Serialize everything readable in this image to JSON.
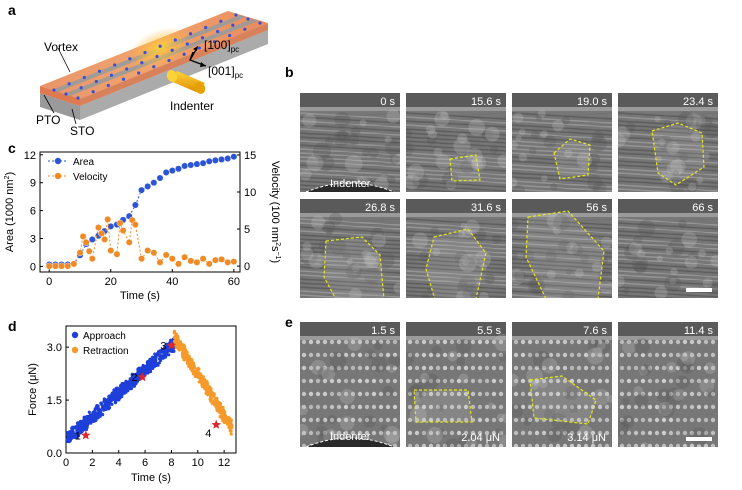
{
  "panels": {
    "a": "a",
    "b": "b",
    "c": "c",
    "d": "d",
    "e": "e"
  },
  "schematic": {
    "vortex": "Vortex",
    "pto": "PTO",
    "sto": "STO",
    "indenter": "Indenter",
    "axis_100": "[100]",
    "axis_001": "[001]",
    "axis_sub": "pc"
  },
  "tem_b": {
    "times": [
      "0 s",
      "15.6 s",
      "19.0 s",
      "23.4 s",
      "26.8 s",
      "31.6 s",
      "56 s",
      "66 s"
    ],
    "indenter_label": "Indenter"
  },
  "tem_e": {
    "times": [
      "1.5 s",
      "5.5 s",
      "7.6 s",
      "11.4 s"
    ],
    "forces": [
      "2.04 μN",
      "3.14 μN"
    ],
    "indenter_label": "Indenter"
  },
  "colors": {
    "area": "#2b55d6",
    "velocity": "#f08a24",
    "approach": "#1f3fd9",
    "retraction": "#f59a2a",
    "boundary": "#e8e81a",
    "marker": "#e0262a"
  },
  "chart_data": [
    {
      "id": "c",
      "type": "scatter",
      "xlabel": "Time (s)",
      "ylabel": "Area (1000 nm",
      "ylabel_sup": "2",
      "ylabel_end": ")",
      "y2label": "Velocity (100 nm",
      "y2label_sup": "2",
      "y2label_mid": "s",
      "y2label_sup2": "−1",
      "y2label_end": ")",
      "xlim": [
        -3,
        62
      ],
      "ylim": [
        -0.6,
        12.3
      ],
      "y2lim": [
        -0.8,
        15.4
      ],
      "xticks": [
        "0",
        "20",
        "40",
        "60"
      ],
      "yticks": [
        "0",
        "3",
        "6",
        "9",
        "12"
      ],
      "y2ticks": [
        "0",
        "5",
        "10",
        "15"
      ],
      "legend": "top-left",
      "series": [
        {
          "name": "Area",
          "axis": "left",
          "x": [
            0,
            2,
            4,
            6,
            8,
            10,
            12,
            14,
            16,
            18,
            20,
            22,
            24,
            26,
            28,
            30,
            32,
            34,
            36,
            38,
            40,
            42,
            44,
            46,
            48,
            50,
            52,
            54,
            56,
            58,
            60
          ],
          "y": [
            0.2,
            0.2,
            0.2,
            0.2,
            0.25,
            1.2,
            2.4,
            2.9,
            3.3,
            3.8,
            4.3,
            4.5,
            5.0,
            5.4,
            6.6,
            8.2,
            8.6,
            9.0,
            9.5,
            10.1,
            10.3,
            10.5,
            10.8,
            10.9,
            11.0,
            11.1,
            11.3,
            11.4,
            11.5,
            11.6,
            11.8
          ]
        },
        {
          "name": "Velocity",
          "axis": "right",
          "x": [
            0,
            2,
            4,
            6,
            8,
            10,
            11,
            12,
            13,
            14,
            16,
            17,
            18,
            19,
            20,
            22,
            23,
            24,
            26,
            27,
            28,
            30,
            32,
            34,
            36,
            38,
            40,
            42,
            44,
            46,
            48,
            50,
            52,
            54,
            56,
            58,
            60
          ],
          "y": [
            0,
            0,
            0,
            0,
            0.3,
            1.8,
            4.0,
            3.2,
            2.0,
            1.0,
            5.2,
            4.4,
            3.6,
            6.3,
            2.1,
            1.6,
            5.8,
            4.8,
            3.2,
            6.2,
            5.6,
            1.0,
            2.1,
            1.8,
            0.5,
            1.5,
            1.0,
            0.3,
            1.2,
            0.7,
            0.5,
            1.0,
            0.3,
            0.8,
            0.9,
            0.5,
            0.6
          ]
        }
      ]
    },
    {
      "id": "d",
      "type": "scatter",
      "xlabel": "Time (s)",
      "ylabel": "Force (μN)",
      "xlim": [
        0,
        12.9
      ],
      "ylim": [
        0,
        3.6
      ],
      "xticks": [
        "0",
        "2",
        "4",
        "6",
        "8",
        "10",
        "12"
      ],
      "yticks": [
        "0.0",
        "1.5",
        "3.0"
      ],
      "legend": "top-left",
      "series": [
        {
          "name": "Approach",
          "x_range": [
            0.1,
            8.2
          ],
          "y_start": 0.4,
          "y_end": 3.1
        },
        {
          "name": "Retraction",
          "x_range": [
            8.2,
            12.6
          ],
          "y_start": 3.3,
          "y_end": 0.7
        }
      ],
      "markers": [
        {
          "label": "1",
          "x": 1.5,
          "y": 0.5
        },
        {
          "label": "2",
          "x": 5.8,
          "y": 2.15
        },
        {
          "label": "3",
          "x": 8.0,
          "y": 3.05
        },
        {
          "label": "4",
          "x": 11.4,
          "y": 0.8
        }
      ]
    }
  ]
}
